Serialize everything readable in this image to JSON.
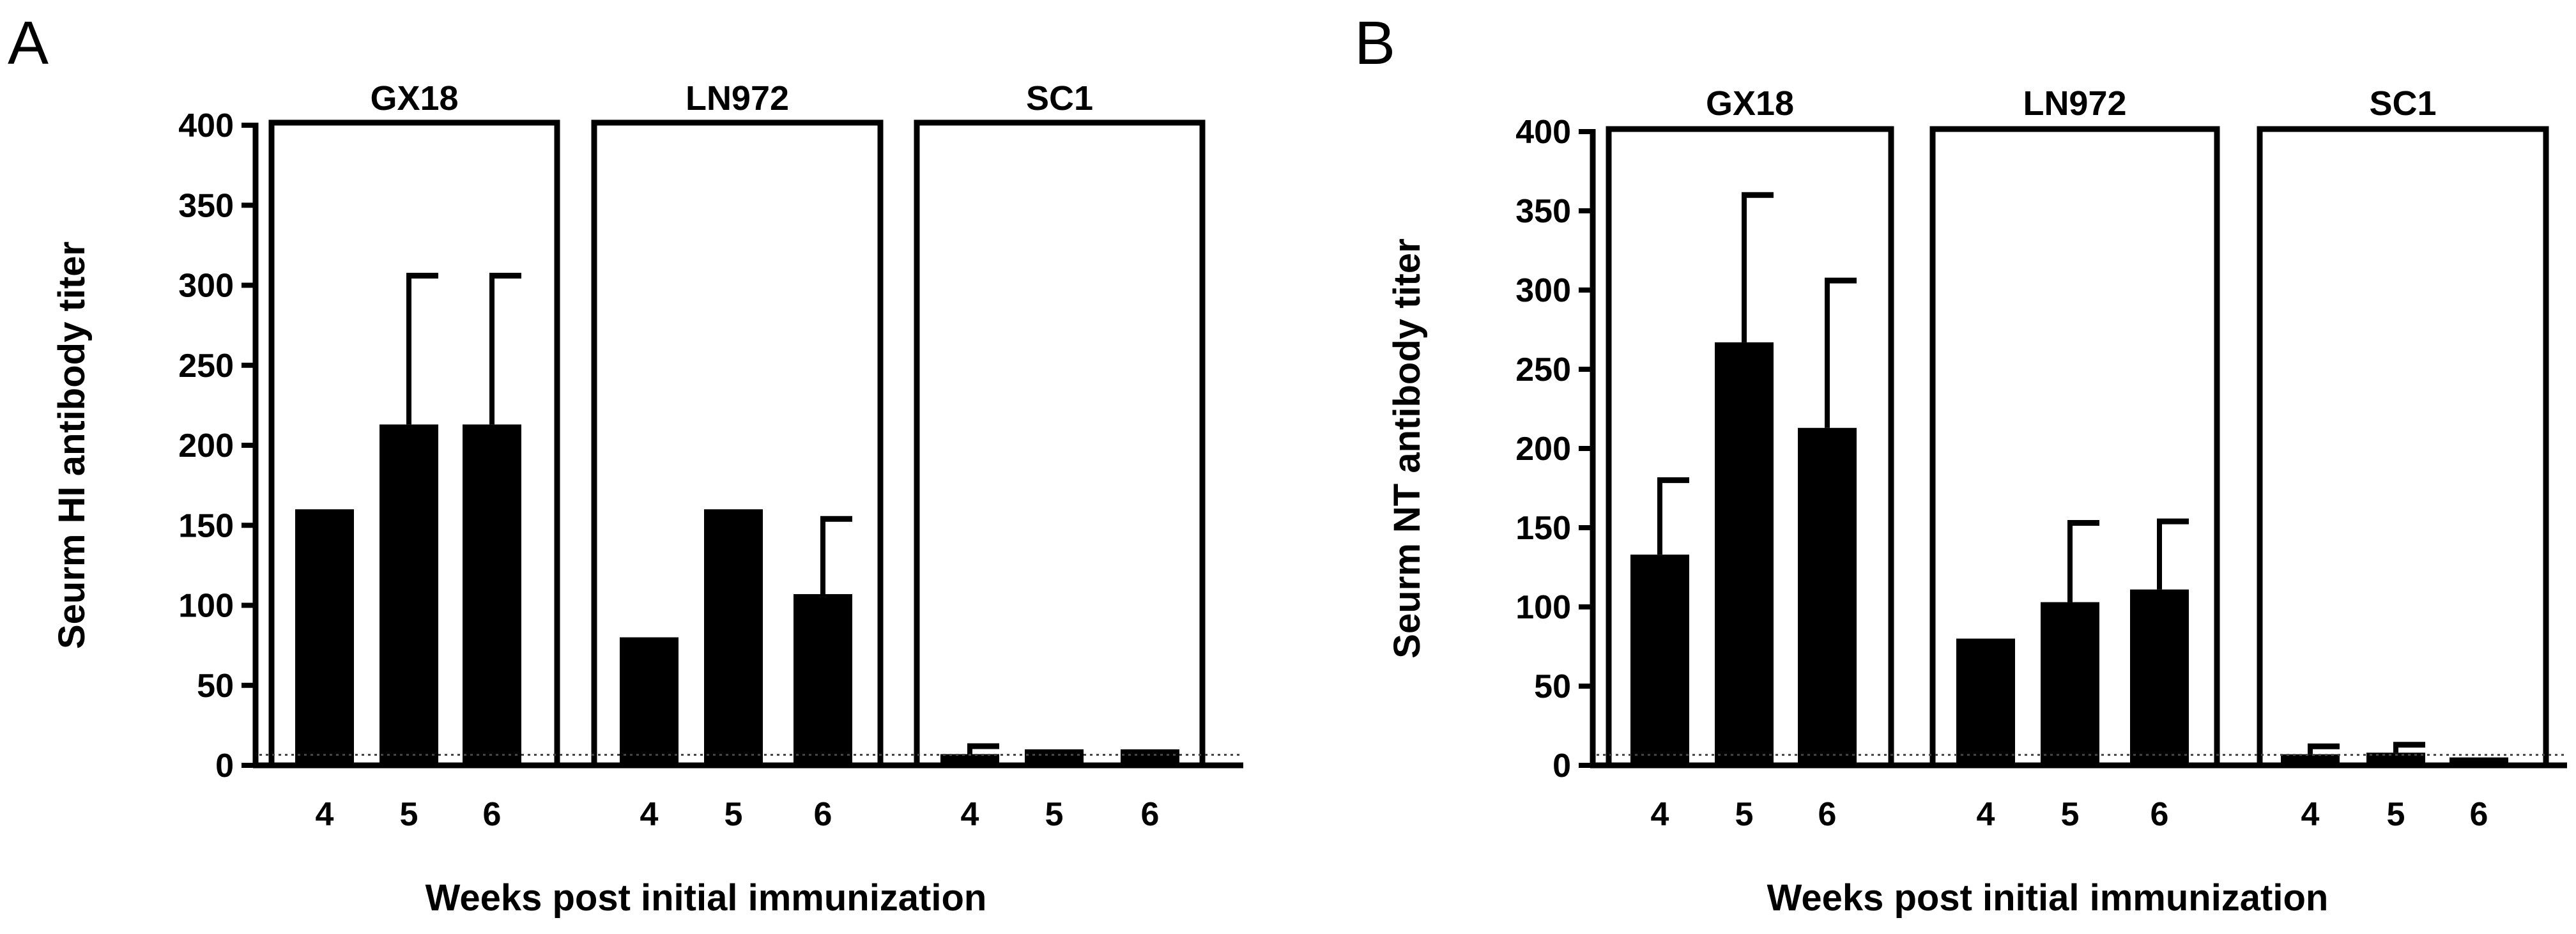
{
  "colors": {
    "bar": "#000000",
    "axis": "#000000",
    "background": "#ffffff",
    "detection_line": "#444444"
  },
  "chart_data": [
    {
      "type": "bar",
      "panel_label": "A",
      "ylabel": "Seurm HI antibody titer",
      "xlabel": "Weeks post initial immunization",
      "ylim": [
        0,
        400
      ],
      "yticks": [
        "0",
        "50",
        "100",
        "150",
        "200",
        "250",
        "300",
        "350",
        "400"
      ],
      "detection_limit": 5,
      "grid": false,
      "groups": [
        {
          "name": "GX18",
          "categories": [
            "4",
            "5",
            "6"
          ],
          "values": [
            160,
            213,
            213
          ],
          "error": [
            0,
            93,
            93
          ]
        },
        {
          "name": "LN972",
          "categories": [
            "4",
            "5",
            "6"
          ],
          "values": [
            80,
            160,
            107
          ],
          "error": [
            0,
            0,
            47
          ]
        },
        {
          "name": "SC1",
          "categories": [
            "4",
            "5",
            "6"
          ],
          "values": [
            7,
            10,
            10
          ],
          "error": [
            5,
            0,
            0
          ]
        }
      ]
    },
    {
      "type": "bar",
      "panel_label": "B",
      "ylabel": "Seurm NT antibody titer",
      "xlabel": "Weeks post initial immunization",
      "ylim": [
        0,
        400
      ],
      "yticks": [
        "0",
        "50",
        "100",
        "150",
        "200",
        "250",
        "300",
        "350",
        "400"
      ],
      "detection_limit": 5,
      "grid": false,
      "groups": [
        {
          "name": "GX18",
          "categories": [
            "4",
            "5",
            "6"
          ],
          "values": [
            133,
            267,
            213
          ],
          "error": [
            47,
            93,
            93
          ]
        },
        {
          "name": "LN972",
          "categories": [
            "4",
            "5",
            "6"
          ],
          "values": [
            80,
            103,
            111
          ],
          "error": [
            0,
            50,
            43
          ]
        },
        {
          "name": "SC1",
          "categories": [
            "4",
            "5",
            "6"
          ],
          "values": [
            7,
            8,
            5
          ],
          "error": [
            5,
            5,
            0
          ]
        }
      ]
    }
  ]
}
